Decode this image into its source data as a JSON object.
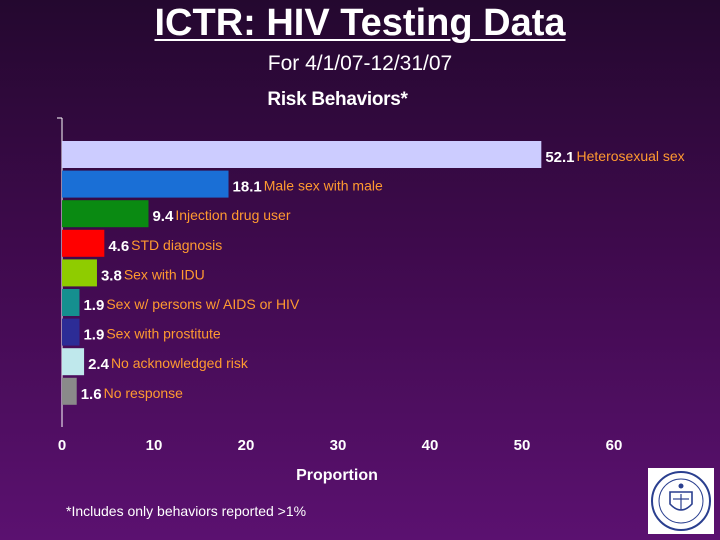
{
  "slide": {
    "title": "ICTR: HIV Testing Data",
    "subtitle": "For 4/1/07-12/31/07",
    "footnote": "*Includes only behaviors reported >1%",
    "logo_icon": "university-seal-icon"
  },
  "chart_data": {
    "type": "bar",
    "orientation": "horizontal",
    "title": "Risk Behaviors*",
    "xlabel": "Proportion",
    "ylabel": "",
    "xlim": [
      0,
      60
    ],
    "xticks": [
      0,
      10,
      20,
      30,
      40,
      50,
      60
    ],
    "grid": false,
    "categories": [
      "Heterosexual sex",
      "Male sex with male",
      "Injection drug user",
      "STD diagnosis",
      "Sex with IDU",
      "Sex w/ persons w/ AIDS or HIV",
      "Sex with prostitute",
      "No acknowledged risk",
      "No response"
    ],
    "values": [
      52.1,
      18.1,
      9.4,
      4.6,
      3.8,
      1.9,
      1.9,
      2.4,
      1.6
    ],
    "value_labels": [
      "52.1",
      "18.1",
      "9.4",
      "4.6",
      "3.8",
      "1.9",
      "1.9",
      "2.4",
      "1.6"
    ],
    "colors": [
      "#ccccff",
      "#1a6fd6",
      "#0a8a12",
      "#ff0000",
      "#8fcc00",
      "#158f8f",
      "#2c2c96",
      "#bfe8ec",
      "#8a8a8a"
    ],
    "value_color": "#ffffff",
    "label_color": "#ff9a30",
    "axis_color": "#ffffff"
  }
}
